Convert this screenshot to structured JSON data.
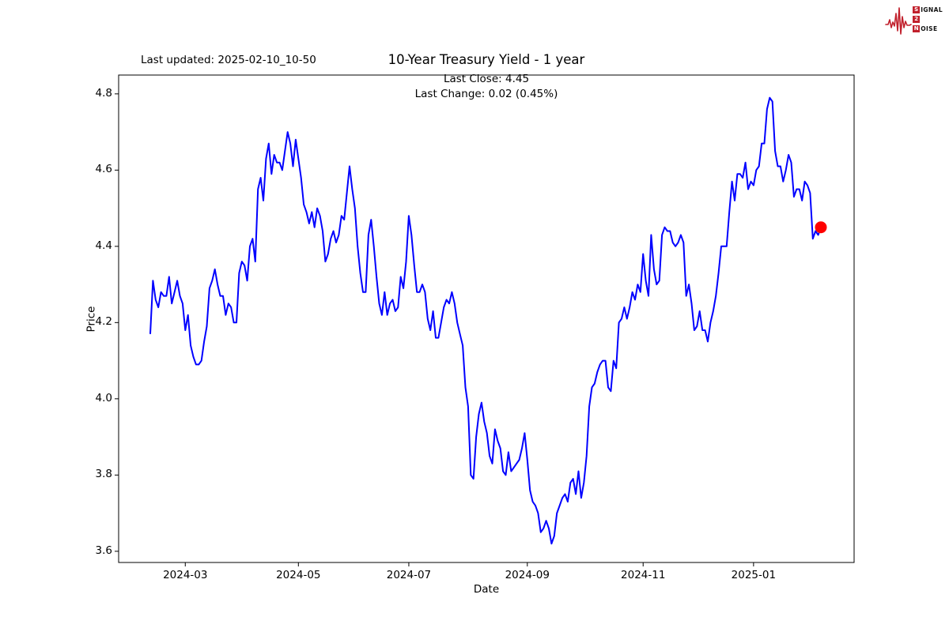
{
  "header": {
    "last_updated": "Last updated: 2025-02-10_10-50",
    "logo": {
      "color": "#c1202c",
      "line1_initial": "S",
      "line1_rest": "IGNAL",
      "line2_initial": "2",
      "line2_rest": "",
      "line3_initial": "N",
      "line3_rest": "OISE"
    }
  },
  "chart_data": {
    "type": "line",
    "title": "10-Year Treasury Yield - 1 year",
    "subtitle_line1": "Last Close: 4.45",
    "subtitle_line2": "Last Change: 0.02 (0.45%)",
    "xlabel": "Date",
    "ylabel": "Price",
    "line_color": "#0000ff",
    "marker_color": "#ff0000",
    "axis_color": "#000000",
    "last_close": 4.45,
    "last_change_abs": 0.02,
    "last_change_pct": "0.45%",
    "ylim": [
      3.5706,
      4.8494
    ],
    "y_ticks": [
      "4.8",
      "4.6",
      "4.4",
      "4.2",
      "4.0",
      "3.8",
      "3.6"
    ],
    "x_ticks": [
      {
        "date": "2024-03-01",
        "label": "2024-03"
      },
      {
        "date": "2024-05-01",
        "label": "2024-05"
      },
      {
        "date": "2024-07-01",
        "label": "2024-07"
      },
      {
        "date": "2024-09-01",
        "label": "2024-09"
      },
      {
        "date": "2024-11-01",
        "label": "2024-11"
      },
      {
        "date": "2025-01-01",
        "label": "2025-01"
      }
    ],
    "legend": "none",
    "grid": false,
    "dates": [
      "2024-02-12",
      "2024-02-13",
      "2024-02-14",
      "2024-02-15",
      "2024-02-16",
      "2024-02-20",
      "2024-02-21",
      "2024-02-22",
      "2024-02-23",
      "2024-02-26",
      "2024-02-27",
      "2024-02-28",
      "2024-02-29",
      "2024-03-01",
      "2024-03-04",
      "2024-03-05",
      "2024-03-06",
      "2024-03-07",
      "2024-03-08",
      "2024-03-11",
      "2024-03-12",
      "2024-03-13",
      "2024-03-14",
      "2024-03-15",
      "2024-03-18",
      "2024-03-19",
      "2024-03-20",
      "2024-03-21",
      "2024-03-22",
      "2024-03-25",
      "2024-03-26",
      "2024-03-27",
      "2024-03-28",
      "2024-04-01",
      "2024-04-02",
      "2024-04-03",
      "2024-04-04",
      "2024-04-05",
      "2024-04-08",
      "2024-04-09",
      "2024-04-10",
      "2024-04-11",
      "2024-04-12",
      "2024-04-15",
      "2024-04-16",
      "2024-04-17",
      "2024-04-18",
      "2024-04-19",
      "2024-04-22",
      "2024-04-23",
      "2024-04-24",
      "2024-04-25",
      "2024-04-26",
      "2024-04-29",
      "2024-04-30",
      "2024-05-01",
      "2024-05-02",
      "2024-05-03",
      "2024-05-06",
      "2024-05-07",
      "2024-05-08",
      "2024-05-09",
      "2024-05-10",
      "2024-05-13",
      "2024-05-14",
      "2024-05-15",
      "2024-05-16",
      "2024-05-17",
      "2024-05-20",
      "2024-05-21",
      "2024-05-22",
      "2024-05-23",
      "2024-05-24",
      "2024-05-28",
      "2024-05-29",
      "2024-05-30",
      "2024-05-31",
      "2024-06-03",
      "2024-06-04",
      "2024-06-05",
      "2024-06-06",
      "2024-06-07",
      "2024-06-10",
      "2024-06-11",
      "2024-06-12",
      "2024-06-13",
      "2024-06-14",
      "2024-06-17",
      "2024-06-18",
      "2024-06-20",
      "2024-06-21",
      "2024-06-24",
      "2024-06-25",
      "2024-06-26",
      "2024-06-27",
      "2024-06-28",
      "2024-07-01",
      "2024-07-02",
      "2024-07-03",
      "2024-07-05",
      "2024-07-08",
      "2024-07-09",
      "2024-07-10",
      "2024-07-11",
      "2024-07-12",
      "2024-07-15",
      "2024-07-16",
      "2024-07-17",
      "2024-07-18",
      "2024-07-19",
      "2024-07-22",
      "2024-07-23",
      "2024-07-24",
      "2024-07-25",
      "2024-07-26",
      "2024-07-29",
      "2024-07-30",
      "2024-07-31",
      "2024-08-01",
      "2024-08-02",
      "2024-08-05",
      "2024-08-06",
      "2024-08-07",
      "2024-08-08",
      "2024-08-09",
      "2024-08-12",
      "2024-08-13",
      "2024-08-14",
      "2024-08-15",
      "2024-08-16",
      "2024-08-19",
      "2024-08-20",
      "2024-08-21",
      "2024-08-22",
      "2024-08-23",
      "2024-08-26",
      "2024-08-27",
      "2024-08-28",
      "2024-08-29",
      "2024-08-30",
      "2024-09-03",
      "2024-09-04",
      "2024-09-05",
      "2024-09-06",
      "2024-09-09",
      "2024-09-10",
      "2024-09-11",
      "2024-09-12",
      "2024-09-13",
      "2024-09-16",
      "2024-09-17",
      "2024-09-18",
      "2024-09-19",
      "2024-09-20",
      "2024-09-23",
      "2024-09-24",
      "2024-09-25",
      "2024-09-26",
      "2024-09-27",
      "2024-09-30",
      "2024-10-01",
      "2024-10-02",
      "2024-10-03",
      "2024-10-04",
      "2024-10-07",
      "2024-10-08",
      "2024-10-09",
      "2024-10-10",
      "2024-10-11",
      "2024-10-14",
      "2024-10-15",
      "2024-10-16",
      "2024-10-17",
      "2024-10-18",
      "2024-10-21",
      "2024-10-22",
      "2024-10-23",
      "2024-10-24",
      "2024-10-25",
      "2024-10-28",
      "2024-10-29",
      "2024-10-30",
      "2024-10-31",
      "2024-11-01",
      "2024-11-04",
      "2024-11-05",
      "2024-11-06",
      "2024-11-07",
      "2024-11-08",
      "2024-11-11",
      "2024-11-12",
      "2024-11-13",
      "2024-11-14",
      "2024-11-15",
      "2024-11-18",
      "2024-11-19",
      "2024-11-20",
      "2024-11-21",
      "2024-11-22",
      "2024-11-25",
      "2024-11-26",
      "2024-11-27",
      "2024-11-29",
      "2024-12-02",
      "2024-12-03",
      "2024-12-04",
      "2024-12-05",
      "2024-12-06",
      "2024-12-09",
      "2024-12-10",
      "2024-12-11",
      "2024-12-12",
      "2024-12-13",
      "2024-12-16",
      "2024-12-17",
      "2024-12-18",
      "2024-12-19",
      "2024-12-20",
      "2024-12-23",
      "2024-12-24",
      "2024-12-26",
      "2024-12-27",
      "2024-12-30",
      "2024-12-31",
      "2025-01-02",
      "2025-01-03",
      "2025-01-06",
      "2025-01-07",
      "2025-01-08",
      "2025-01-10",
      "2025-01-13",
      "2025-01-14",
      "2025-01-15",
      "2025-01-16",
      "2025-01-17",
      "2025-01-21",
      "2025-01-22",
      "2025-01-23",
      "2025-01-24",
      "2025-01-27",
      "2025-01-28",
      "2025-01-29",
      "2025-01-30",
      "2025-01-31",
      "2025-02-03",
      "2025-02-04",
      "2025-02-05",
      "2025-02-06",
      "2025-02-07",
      "2025-02-10"
    ],
    "values": [
      4.17,
      4.31,
      4.26,
      4.24,
      4.28,
      4.27,
      4.27,
      4.32,
      4.25,
      4.28,
      4.31,
      4.27,
      4.25,
      4.18,
      4.22,
      4.14,
      4.11,
      4.09,
      4.09,
      4.1,
      4.15,
      4.19,
      4.29,
      4.31,
      4.34,
      4.3,
      4.27,
      4.27,
      4.22,
      4.25,
      4.24,
      4.2,
      4.2,
      4.33,
      4.36,
      4.35,
      4.31,
      4.4,
      4.42,
      4.36,
      4.55,
      4.58,
      4.52,
      4.63,
      4.67,
      4.59,
      4.64,
      4.62,
      4.62,
      4.6,
      4.65,
      4.7,
      4.67,
      4.61,
      4.68,
      4.63,
      4.58,
      4.51,
      4.49,
      4.46,
      4.49,
      4.45,
      4.5,
      4.48,
      4.44,
      4.36,
      4.38,
      4.42,
      4.44,
      4.41,
      4.43,
      4.48,
      4.47,
      4.54,
      4.61,
      4.55,
      4.5,
      4.4,
      4.33,
      4.28,
      4.28,
      4.43,
      4.47,
      4.4,
      4.32,
      4.25,
      4.22,
      4.28,
      4.22,
      4.25,
      4.26,
      4.23,
      4.24,
      4.32,
      4.29,
      4.36,
      4.48,
      4.43,
      4.35,
      4.28,
      4.28,
      4.3,
      4.28,
      4.21,
      4.18,
      4.23,
      4.16,
      4.16,
      4.2,
      4.24,
      4.26,
      4.25,
      4.28,
      4.25,
      4.2,
      4.17,
      4.14,
      4.03,
      3.98,
      3.8,
      3.79,
      3.9,
      3.96,
      3.99,
      3.94,
      3.91,
      3.85,
      3.83,
      3.92,
      3.89,
      3.87,
      3.81,
      3.8,
      3.86,
      3.81,
      3.82,
      3.83,
      3.84,
      3.87,
      3.91,
      3.84,
      3.76,
      3.73,
      3.72,
      3.7,
      3.65,
      3.66,
      3.68,
      3.66,
      3.62,
      3.64,
      3.7,
      3.72,
      3.74,
      3.75,
      3.73,
      3.78,
      3.79,
      3.75,
      3.81,
      3.74,
      3.78,
      3.85,
      3.98,
      4.03,
      4.04,
      4.07,
      4.09,
      4.1,
      4.1,
      4.03,
      4.02,
      4.1,
      4.08,
      4.2,
      4.21,
      4.24,
      4.21,
      4.24,
      4.28,
      4.26,
      4.3,
      4.28,
      4.38,
      4.31,
      4.27,
      4.43,
      4.34,
      4.3,
      4.31,
      4.43,
      4.45,
      4.44,
      4.44,
      4.41,
      4.4,
      4.41,
      4.43,
      4.41,
      4.27,
      4.3,
      4.25,
      4.18,
      4.19,
      4.23,
      4.18,
      4.18,
      4.15,
      4.2,
      4.23,
      4.27,
      4.33,
      4.4,
      4.4,
      4.4,
      4.49,
      4.57,
      4.52,
      4.59,
      4.59,
      4.58,
      4.62,
      4.55,
      4.57,
      4.56,
      4.6,
      4.61,
      4.67,
      4.67,
      4.76,
      4.79,
      4.78,
      4.65,
      4.61,
      4.61,
      4.57,
      4.6,
      4.64,
      4.62,
      4.53,
      4.55,
      4.55,
      4.52,
      4.57,
      4.56,
      4.54,
      4.42,
      4.44,
      4.43,
      4.45
    ]
  }
}
